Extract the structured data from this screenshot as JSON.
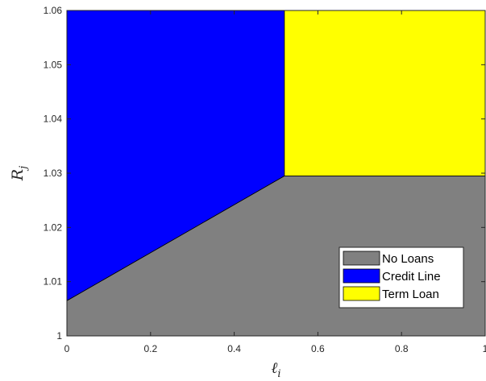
{
  "chart_data": {
    "type": "area",
    "title": "",
    "xlabel": {
      "base": "ℓ",
      "sub": "i"
    },
    "ylabel": {
      "base": "R",
      "sub": "j"
    },
    "xlim": [
      0,
      1
    ],
    "ylim": [
      1,
      1.06
    ],
    "x_ticks": [
      0,
      0.2,
      0.4,
      0.6,
      0.8,
      1
    ],
    "x_tick_labels": [
      "0",
      "0.2",
      "0.4",
      "0.6",
      "0.8",
      "1"
    ],
    "y_ticks": [
      1,
      1.01,
      1.02,
      1.03,
      1.04,
      1.05,
      1.06
    ],
    "y_tick_labels": [
      "1",
      "1.01",
      "1.02",
      "1.03",
      "1.04",
      "1.05",
      "1.06"
    ],
    "grid": false,
    "legend_position": "bottom-right",
    "regions": [
      {
        "name": "No Loans",
        "color": "#808080",
        "polygon": [
          [
            0,
            1
          ],
          [
            1,
            1
          ],
          [
            1,
            1.0295
          ],
          [
            0.52,
            1.0295
          ],
          [
            0,
            1.0065
          ]
        ]
      },
      {
        "name": "Credit Line",
        "color": "#0000ff",
        "polygon": [
          [
            0,
            1.0065
          ],
          [
            0.52,
            1.0295
          ],
          [
            0.52,
            1.06
          ],
          [
            0,
            1.06
          ]
        ]
      },
      {
        "name": "Term Loan",
        "color": "#ffff00",
        "polygon": [
          [
            0.52,
            1.0295
          ],
          [
            1,
            1.0295
          ],
          [
            1,
            1.06
          ],
          [
            0.52,
            1.06
          ]
        ]
      }
    ]
  }
}
